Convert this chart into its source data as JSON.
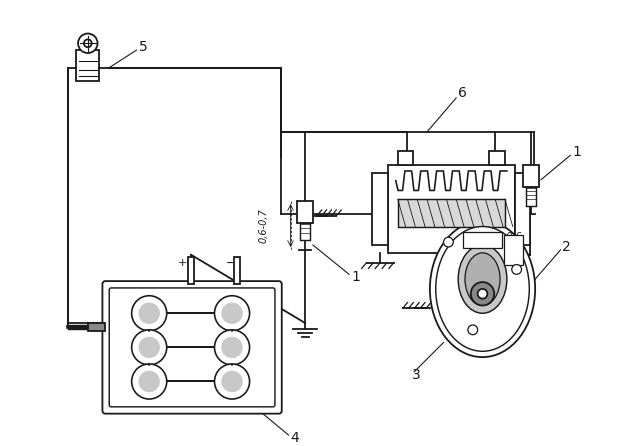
{
  "bg_color": "#ffffff",
  "line_color": "#1a1a1a",
  "figsize": [
    6.21,
    4.46
  ],
  "dpi": 100
}
